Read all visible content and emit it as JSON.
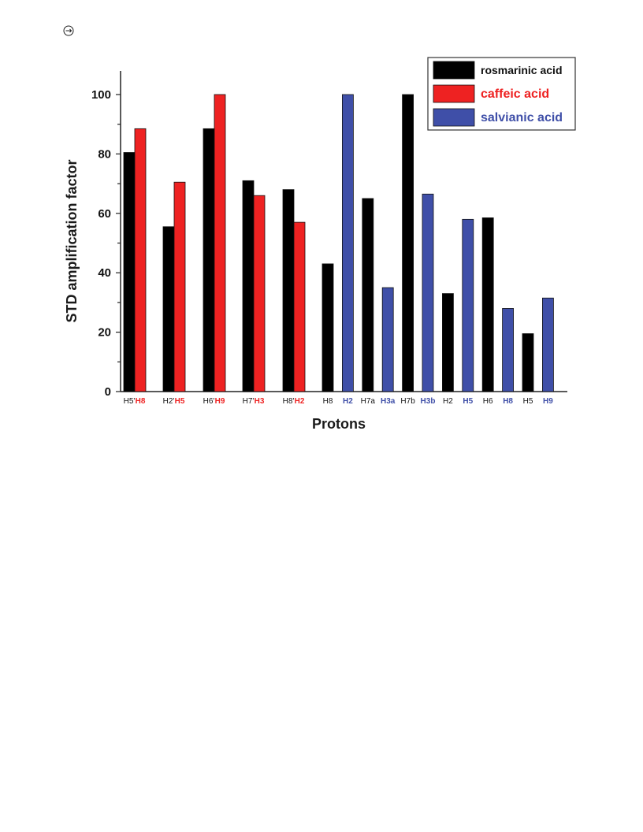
{
  "page_icon": "circle-arrow-icon",
  "chart_data": {
    "type": "bar",
    "xlabel": "Protons",
    "ylabel": "STD amplification factor",
    "ylim": [
      0,
      108
    ],
    "yticks": [
      0,
      20,
      40,
      60,
      80,
      100
    ],
    "grid": false,
    "legend_position": "top-right",
    "series": [
      {
        "name": "rosmarinic acid",
        "color": "#000000",
        "text_color": "#111111"
      },
      {
        "name": "caffeic acid",
        "color": "#ee2222",
        "text_color": "#ee2222"
      },
      {
        "name": "salvianic acid",
        "color": "#3f4fa8",
        "text_color": "#3f4fa8"
      }
    ],
    "bars": [
      {
        "label": "H5'",
        "series": 0,
        "value": 80.5
      },
      {
        "label": "H8",
        "series": 1,
        "value": 88.5
      },
      {
        "label": "H2'",
        "series": 0,
        "value": 55.5
      },
      {
        "label": "H5",
        "series": 1,
        "value": 70.5
      },
      {
        "label": "H6'",
        "series": 0,
        "value": 88.5
      },
      {
        "label": "H9",
        "series": 1,
        "value": 100
      },
      {
        "label": "H7'",
        "series": 0,
        "value": 71
      },
      {
        "label": "H3",
        "series": 1,
        "value": 66
      },
      {
        "label": "H8'",
        "series": 0,
        "value": 68
      },
      {
        "label": "H2",
        "series": 1,
        "value": 57
      },
      {
        "label": "H8",
        "series": 0,
        "value": 43
      },
      {
        "label": "H2",
        "series": 2,
        "value": 100
      },
      {
        "label": "H7a",
        "series": 0,
        "value": 65
      },
      {
        "label": "H3a",
        "series": 2,
        "value": 35
      },
      {
        "label": "H7b",
        "series": 0,
        "value": 100
      },
      {
        "label": "H3b",
        "series": 2,
        "value": 66.5
      },
      {
        "label": "H2",
        "series": 0,
        "value": 33
      },
      {
        "label": "H5",
        "series": 2,
        "value": 58
      },
      {
        "label": "H6",
        "series": 0,
        "value": 58.5
      },
      {
        "label": "H8",
        "series": 2,
        "value": 28
      },
      {
        "label": "H5",
        "series": 0,
        "value": 19.5
      },
      {
        "label": "H9",
        "series": 2,
        "value": 31.5
      }
    ]
  }
}
